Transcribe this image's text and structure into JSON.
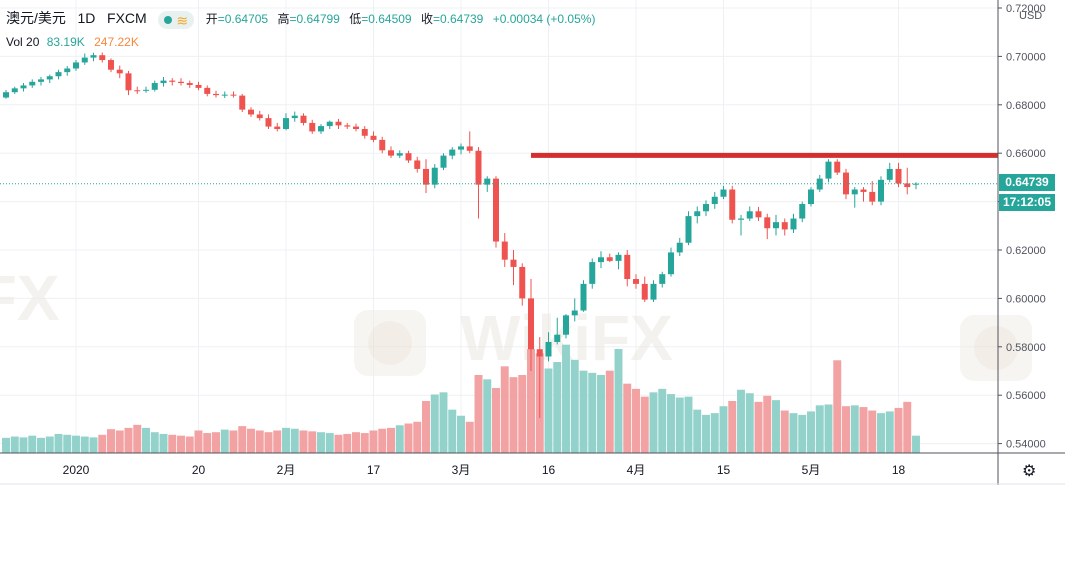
{
  "header": {
    "symbol": "澳元/美元",
    "interval": "1D",
    "source": "FXCM",
    "ohlc": {
      "open_label": "开",
      "open": "=0.64705",
      "high_label": "高",
      "high": "=0.64799",
      "low_label": "低",
      "low": "=0.64509",
      "close_label": "收",
      "close": "=0.64739",
      "change": "+0.00034 (+0.05%)"
    }
  },
  "volume_legend": {
    "label": "Vol 20",
    "value1": "83.19K",
    "value2": "247.22K"
  },
  "price_axis": {
    "currency": "USD",
    "current_price": "0.64739",
    "countdown": "17:12:05"
  },
  "colors": {
    "up": "#26a69a",
    "down": "#ef5350",
    "up_vol": "#93d2cb",
    "down_vol": "#f2a2a3",
    "resistance": "#d32f2f",
    "grid": "#eef0f3"
  },
  "chart_data": {
    "type": "candlestick",
    "symbol": "AUD/USD",
    "y_ticks": [
      "0.72000",
      "0.70000",
      "0.68000",
      "0.66000",
      "0.64000",
      "0.62000",
      "0.60000",
      "0.58000",
      "0.56000",
      "0.54000"
    ],
    "ylim": [
      0.5355,
      0.7215
    ],
    "x_tick_labels": [
      "2020",
      "20",
      "2月",
      "17",
      "3月",
      "16",
      "4月",
      "15",
      "5月",
      "18"
    ],
    "x_tick_bar_index": [
      8,
      22,
      32,
      42,
      52,
      62,
      72,
      82,
      92,
      102
    ],
    "candles": [
      [
        0.683,
        0.6861,
        0.6825,
        0.6852
      ],
      [
        0.6852,
        0.6875,
        0.6845,
        0.6868
      ],
      [
        0.6868,
        0.689,
        0.6855,
        0.688
      ],
      [
        0.688,
        0.6905,
        0.687,
        0.6895
      ],
      [
        0.6895,
        0.6915,
        0.688,
        0.6905
      ],
      [
        0.6905,
        0.6925,
        0.689,
        0.6918
      ],
      [
        0.6918,
        0.6945,
        0.6905,
        0.6935
      ],
      [
        0.6935,
        0.696,
        0.692,
        0.695
      ],
      [
        0.695,
        0.6985,
        0.694,
        0.6975
      ],
      [
        0.6975,
        0.7012,
        0.6965,
        0.6995
      ],
      [
        0.6995,
        0.7015,
        0.698,
        0.7005
      ],
      [
        0.7005,
        0.7016,
        0.6975,
        0.6985
      ],
      [
        0.6985,
        0.6992,
        0.6935,
        0.6945
      ],
      [
        0.6945,
        0.6962,
        0.691,
        0.693
      ],
      [
        0.693,
        0.694,
        0.684,
        0.686
      ],
      [
        0.686,
        0.6875,
        0.6845,
        0.6858
      ],
      [
        0.6858,
        0.6875,
        0.685,
        0.6862
      ],
      [
        0.6862,
        0.69,
        0.6855,
        0.689
      ],
      [
        0.689,
        0.6915,
        0.6875,
        0.69
      ],
      [
        0.69,
        0.691,
        0.688,
        0.6895
      ],
      [
        0.6895,
        0.691,
        0.688,
        0.689
      ],
      [
        0.689,
        0.69,
        0.687,
        0.6882
      ],
      [
        0.6882,
        0.6895,
        0.686,
        0.687
      ],
      [
        0.687,
        0.688,
        0.6835,
        0.6845
      ],
      [
        0.6845,
        0.6858,
        0.683,
        0.684
      ],
      [
        0.684,
        0.6855,
        0.6828,
        0.6842
      ],
      [
        0.6842,
        0.6855,
        0.683,
        0.6838
      ],
      [
        0.6838,
        0.6845,
        0.677,
        0.678
      ],
      [
        0.678,
        0.679,
        0.675,
        0.676
      ],
      [
        0.676,
        0.6775,
        0.6735,
        0.6745
      ],
      [
        0.6745,
        0.676,
        0.67,
        0.671
      ],
      [
        0.671,
        0.6725,
        0.669,
        0.67
      ],
      [
        0.67,
        0.6765,
        0.6695,
        0.6745
      ],
      [
        0.6745,
        0.6772,
        0.673,
        0.6755
      ],
      [
        0.6755,
        0.6765,
        0.6715,
        0.6725
      ],
      [
        0.6725,
        0.6738,
        0.668,
        0.669
      ],
      [
        0.669,
        0.672,
        0.668,
        0.6712
      ],
      [
        0.6712,
        0.6735,
        0.67,
        0.673
      ],
      [
        0.673,
        0.6742,
        0.67,
        0.6715
      ],
      [
        0.6715,
        0.6725,
        0.67,
        0.671
      ],
      [
        0.671,
        0.6722,
        0.669,
        0.67
      ],
      [
        0.67,
        0.6712,
        0.666,
        0.6672
      ],
      [
        0.6672,
        0.669,
        0.6645,
        0.6655
      ],
      [
        0.6655,
        0.6668,
        0.66,
        0.6612
      ],
      [
        0.6612,
        0.6628,
        0.658,
        0.659
      ],
      [
        0.659,
        0.6612,
        0.658,
        0.66
      ],
      [
        0.66,
        0.661,
        0.656,
        0.657
      ],
      [
        0.657,
        0.6585,
        0.652,
        0.6535
      ],
      [
        0.6535,
        0.6575,
        0.6435,
        0.647
      ],
      [
        0.647,
        0.6555,
        0.6455,
        0.654
      ],
      [
        0.654,
        0.66,
        0.653,
        0.659
      ],
      [
        0.659,
        0.6625,
        0.6575,
        0.6615
      ],
      [
        0.6615,
        0.664,
        0.6595,
        0.6628
      ],
      [
        0.6628,
        0.669,
        0.66,
        0.661
      ],
      [
        0.661,
        0.6625,
        0.633,
        0.647
      ],
      [
        0.647,
        0.6505,
        0.644,
        0.6495
      ],
      [
        0.6495,
        0.6505,
        0.621,
        0.6235
      ],
      [
        0.6235,
        0.627,
        0.613,
        0.616
      ],
      [
        0.616,
        0.62,
        0.6055,
        0.613
      ],
      [
        0.613,
        0.6145,
        0.597,
        0.6
      ],
      [
        0.6,
        0.608,
        0.57,
        0.579
      ],
      [
        0.579,
        0.584,
        0.5506,
        0.576
      ],
      [
        0.576,
        0.586,
        0.574,
        0.582
      ],
      [
        0.582,
        0.592,
        0.581,
        0.585
      ],
      [
        0.585,
        0.5935,
        0.5835,
        0.593
      ],
      [
        0.593,
        0.6,
        0.5905,
        0.595
      ],
      [
        0.595,
        0.6075,
        0.5945,
        0.606
      ],
      [
        0.606,
        0.6165,
        0.604,
        0.615
      ],
      [
        0.615,
        0.6195,
        0.6125,
        0.617
      ],
      [
        0.617,
        0.6185,
        0.615,
        0.6155
      ],
      [
        0.6155,
        0.619,
        0.612,
        0.618
      ],
      [
        0.618,
        0.62,
        0.605,
        0.608
      ],
      [
        0.608,
        0.61,
        0.604,
        0.606
      ],
      [
        0.606,
        0.609,
        0.5985,
        0.5995
      ],
      [
        0.5995,
        0.6075,
        0.5985,
        0.606
      ],
      [
        0.606,
        0.611,
        0.6045,
        0.61
      ],
      [
        0.61,
        0.621,
        0.609,
        0.619
      ],
      [
        0.619,
        0.625,
        0.6175,
        0.623
      ],
      [
        0.623,
        0.636,
        0.622,
        0.634
      ],
      [
        0.634,
        0.638,
        0.631,
        0.636
      ],
      [
        0.636,
        0.6405,
        0.634,
        0.639
      ],
      [
        0.639,
        0.644,
        0.637,
        0.642
      ],
      [
        0.642,
        0.6465,
        0.641,
        0.645
      ],
      [
        0.645,
        0.6465,
        0.631,
        0.6325
      ],
      [
        0.6325,
        0.6345,
        0.626,
        0.633
      ],
      [
        0.633,
        0.638,
        0.632,
        0.636
      ],
      [
        0.636,
        0.6378,
        0.632,
        0.6335
      ],
      [
        0.6335,
        0.635,
        0.6245,
        0.629
      ],
      [
        0.629,
        0.6345,
        0.626,
        0.6315
      ],
      [
        0.6315,
        0.633,
        0.626,
        0.6285
      ],
      [
        0.6285,
        0.635,
        0.627,
        0.633
      ],
      [
        0.633,
        0.64,
        0.6315,
        0.639
      ],
      [
        0.639,
        0.646,
        0.638,
        0.645
      ],
      [
        0.645,
        0.651,
        0.644,
        0.6495
      ],
      [
        0.6495,
        0.6575,
        0.648,
        0.6565
      ],
      [
        0.6565,
        0.6575,
        0.651,
        0.652
      ],
      [
        0.652,
        0.6535,
        0.641,
        0.643
      ],
      [
        0.643,
        0.646,
        0.6375,
        0.645
      ],
      [
        0.645,
        0.646,
        0.64,
        0.644
      ],
      [
        0.644,
        0.6485,
        0.6385,
        0.64
      ],
      [
        0.64,
        0.6505,
        0.6385,
        0.649
      ],
      [
        0.649,
        0.656,
        0.648,
        0.6535
      ],
      [
        0.6535,
        0.656,
        0.646,
        0.6475
      ],
      [
        0.6475,
        0.654,
        0.643,
        0.646
      ],
      [
        0.647,
        0.648,
        0.6451,
        0.6474
      ]
    ],
    "volume": {
      "name": "Vol 20",
      "max": 300000,
      "values": [
        35000,
        38000,
        36000,
        40000,
        35000,
        38000,
        44000,
        42000,
        40000,
        38000,
        36000,
        42000,
        55000,
        52000,
        58000,
        65000,
        58000,
        48000,
        44000,
        42000,
        40000,
        38000,
        52000,
        46000,
        48000,
        54000,
        52000,
        62000,
        56000,
        52000,
        48000,
        52000,
        58000,
        56000,
        52000,
        50000,
        48000,
        46000,
        42000,
        44000,
        48000,
        46000,
        52000,
        56000,
        58000,
        64000,
        68000,
        72000,
        120000,
        135000,
        140000,
        100000,
        86000,
        72000,
        180000,
        170000,
        150000,
        200000,
        175000,
        180000,
        240000,
        230000,
        195000,
        210000,
        250000,
        215000,
        190000,
        185000,
        180000,
        190000,
        240000,
        160000,
        148000,
        130000,
        140000,
        148000,
        136000,
        128000,
        130000,
        100000,
        88000,
        92000,
        108000,
        120000,
        146000,
        138000,
        118000,
        132000,
        122000,
        98000,
        92000,
        88000,
        96000,
        110000,
        112000,
        214000,
        108000,
        110000,
        106000,
        98000,
        92000,
        96000,
        104000,
        118000,
        40000
      ]
    }
  }
}
